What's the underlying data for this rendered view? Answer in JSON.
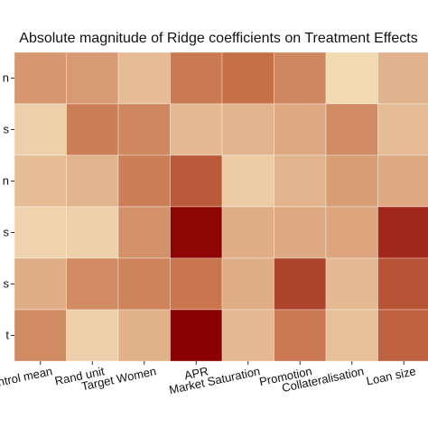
{
  "chart_data": {
    "type": "heatmap",
    "title": "Absolute magnitude of Ridge coefficients on Treatment Effects",
    "x_categories": [
      "Control mean",
      "Rand unit",
      "Target Women",
      "APR",
      "Market Saturation",
      "Promotion",
      "Collateralisation",
      "Loan size"
    ],
    "y_categories": [
      "n",
      "s",
      "n",
      "s",
      "s",
      "t"
    ],
    "values": [
      [
        0.4,
        0.38,
        0.2,
        0.55,
        0.6,
        0.48,
        0.05,
        0.25
      ],
      [
        0.1,
        0.52,
        0.48,
        0.22,
        0.24,
        0.3,
        0.46,
        0.2
      ],
      [
        0.2,
        0.24,
        0.52,
        0.68,
        0.12,
        0.24,
        0.36,
        0.3
      ],
      [
        0.08,
        0.1,
        0.42,
        0.98,
        0.28,
        0.3,
        0.32,
        0.86
      ],
      [
        0.28,
        0.46,
        0.5,
        0.58,
        0.28,
        0.76,
        0.22,
        0.7
      ],
      [
        0.46,
        0.1,
        0.26,
        1.0,
        0.22,
        0.55,
        0.18,
        0.65
      ]
    ],
    "color_low": "#f5e2bc",
    "color_mid": "#c67048",
    "color_high": "#8b0000",
    "grid": true,
    "legend": "none"
  }
}
